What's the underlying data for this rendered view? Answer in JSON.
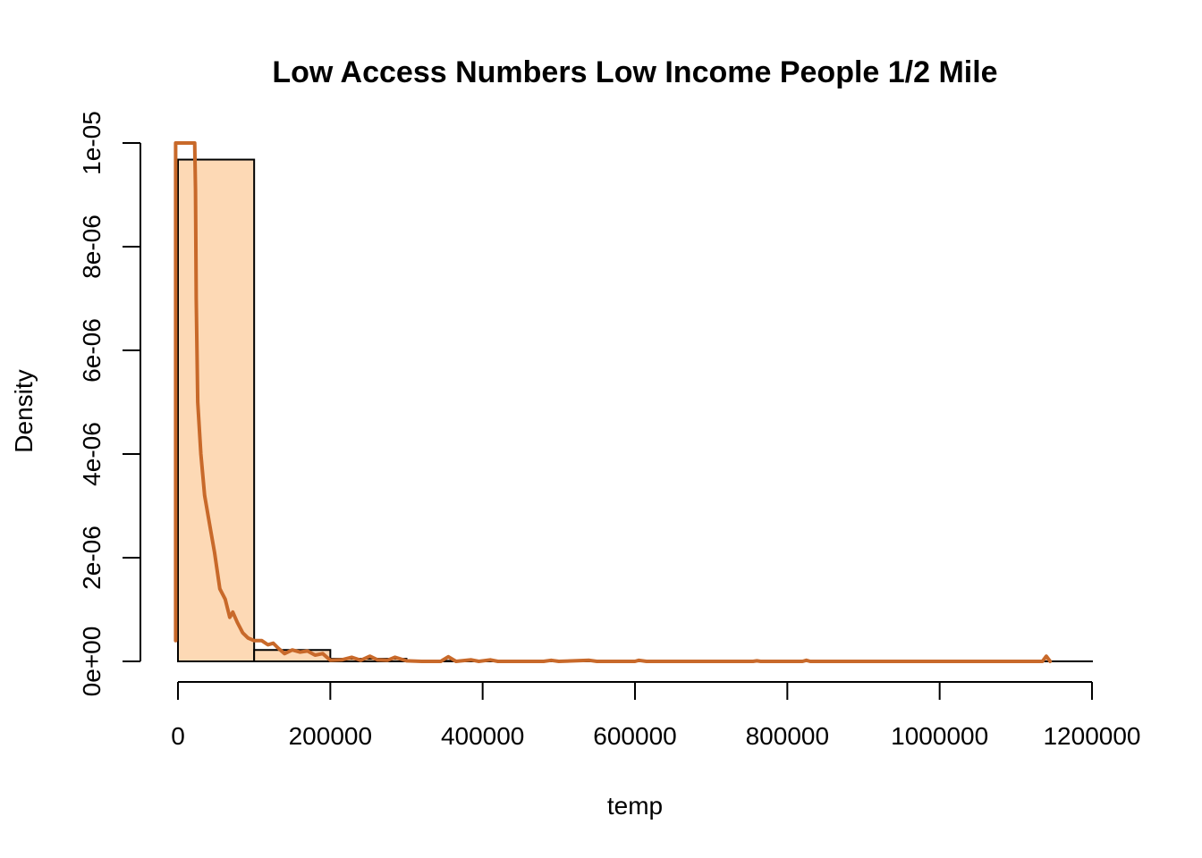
{
  "colors": {
    "bar_fill": "#FDD9B5",
    "bar_stroke": "#000000",
    "density_line": "#C8692A",
    "background": "#FFFFFF"
  },
  "chart_data": {
    "type": "bar",
    "subtype": "histogram with density curve",
    "title": "Low Access Numbers Low Income People 1/2 Mile",
    "xlabel": "temp",
    "ylabel": "Density",
    "xlim": [
      0,
      1200000
    ],
    "ylim": [
      0,
      1e-05
    ],
    "x_ticks": [
      0,
      200000,
      400000,
      600000,
      800000,
      1000000,
      1200000
    ],
    "x_tick_labels": [
      "0",
      "200000",
      "400000",
      "600000",
      "800000",
      "1000000",
      "1200000"
    ],
    "y_ticks": [
      0,
      2e-06,
      4e-06,
      6e-06,
      8e-06,
      1e-05
    ],
    "y_tick_labels": [
      "0e+00",
      "2e-06",
      "4e-06",
      "6e-06",
      "8e-06",
      "1e-05"
    ],
    "grid": false,
    "legend": "none",
    "bins": [
      {
        "start": 0,
        "end": 100000,
        "density": 9.68e-06
      },
      {
        "start": 100000,
        "end": 200000,
        "density": 2.2e-07
      },
      {
        "start": 200000,
        "end": 300000,
        "density": 5e-08
      },
      {
        "start": 300000,
        "end": 400000,
        "density": 1e-08
      },
      {
        "start": 400000,
        "end": 500000,
        "density": 5e-09
      },
      {
        "start": 500000,
        "end": 600000,
        "density": 3e-09
      },
      {
        "start": 600000,
        "end": 700000,
        "density": 2e-09
      },
      {
        "start": 700000,
        "end": 800000,
        "density": 1e-09
      },
      {
        "start": 800000,
        "end": 900000,
        "density": 1e-09
      },
      {
        "start": 900000,
        "end": 1000000,
        "density": 1e-09
      },
      {
        "start": 1000000,
        "end": 1100000,
        "density": 1e-09
      },
      {
        "start": 1100000,
        "end": 1200000,
        "density": 1e-09
      }
    ],
    "density_curve": [
      [
        -3000,
        4e-07
      ],
      [
        -3000,
        4.1e-06
      ],
      [
        -3000,
        9.8e-06
      ],
      [
        -3000,
        1e-05
      ],
      [
        22000,
        1e-05
      ],
      [
        23000,
        9.1e-06
      ],
      [
        24000,
        7e-06
      ],
      [
        26000,
        5e-06
      ],
      [
        30000,
        4e-06
      ],
      [
        35000,
        3.2e-06
      ],
      [
        42000,
        2.6e-06
      ],
      [
        48000,
        2.1e-06
      ],
      [
        55000,
        1.4e-06
      ],
      [
        62000,
        1.2e-06
      ],
      [
        68000,
        8.5e-07
      ],
      [
        72000,
        9.5e-07
      ],
      [
        78000,
        7.5e-07
      ],
      [
        85000,
        5.5e-07
      ],
      [
        92000,
        4.5e-07
      ],
      [
        100000,
        4e-07
      ],
      [
        110000,
        4e-07
      ],
      [
        118000,
        3.2e-07
      ],
      [
        125000,
        3.5e-07
      ],
      [
        132000,
        2.5e-07
      ],
      [
        140000,
        1.5e-07
      ],
      [
        150000,
        2.2e-07
      ],
      [
        160000,
        1.8e-07
      ],
      [
        170000,
        2e-07
      ],
      [
        180000,
        1.2e-07
      ],
      [
        190000,
        1.5e-07
      ],
      [
        200000,
        2e-08
      ],
      [
        215000,
        3e-08
      ],
      [
        228000,
        8e-08
      ],
      [
        240000,
        2e-08
      ],
      [
        252000,
        1e-07
      ],
      [
        262000,
        3e-08
      ],
      [
        275000,
        2e-08
      ],
      [
        285000,
        8e-08
      ],
      [
        300000,
        1e-08
      ],
      [
        320000,
        0.0
      ],
      [
        345000,
        0.0
      ],
      [
        355000,
        9e-08
      ],
      [
        365000,
        0.0
      ],
      [
        385000,
        3e-08
      ],
      [
        395000,
        0.0
      ],
      [
        410000,
        3e-08
      ],
      [
        420000,
        0.0
      ],
      [
        480000,
        0.0
      ],
      [
        490000,
        2e-08
      ],
      [
        500000,
        0.0
      ],
      [
        540000,
        2e-08
      ],
      [
        550000,
        0.0
      ],
      [
        600000,
        0.0
      ],
      [
        605000,
        2e-08
      ],
      [
        615000,
        0.0
      ],
      [
        755000,
        0.0
      ],
      [
        760000,
        1e-08
      ],
      [
        765000,
        0.0
      ],
      [
        820000,
        0.0
      ],
      [
        825000,
        2e-08
      ],
      [
        830000,
        0.0
      ],
      [
        1135000,
        0.0
      ],
      [
        1140000,
        1e-07
      ],
      [
        1145000,
        0.0
      ]
    ]
  }
}
